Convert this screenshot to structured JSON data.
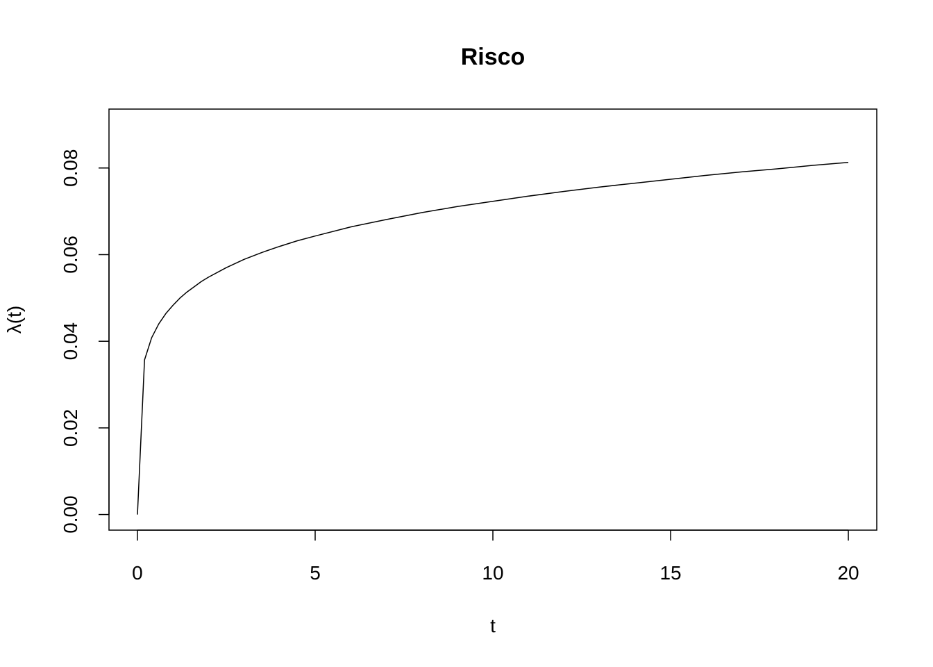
{
  "chart_data": {
    "type": "line",
    "title": "Risco",
    "xlabel": "t",
    "ylabel": "λ(t)",
    "xlim": [
      -0.8,
      20.8
    ],
    "ylim": [
      -0.0036,
      0.0936
    ],
    "xticks": [
      0,
      5,
      10,
      15,
      20
    ],
    "xtick_labels": [
      "0",
      "5",
      "10",
      "15",
      "20"
    ],
    "yticks": [
      0,
      0.02,
      0.04,
      0.06,
      0.08
    ],
    "ytick_labels": [
      "0.00",
      "0.02",
      "0.04",
      "0.06",
      "0.08"
    ],
    "grid": false,
    "legend": "none",
    "line_color": "#000000",
    "series": [
      {
        "x": [
          0,
          0.2,
          0.4,
          0.6,
          0.8,
          1,
          1.2,
          1.4,
          1.6,
          1.8,
          2,
          2.5,
          3,
          3.5,
          4,
          4.5,
          5,
          6,
          7,
          8,
          9,
          10,
          11,
          12,
          13,
          14,
          15,
          16,
          17,
          18,
          19,
          20
        ],
        "y": [
          0,
          0.0357,
          0.0408,
          0.044,
          0.0464,
          0.0483,
          0.05,
          0.0514,
          0.0526,
          0.0538,
          0.0548,
          0.057,
          0.0589,
          0.0605,
          0.0619,
          0.0632,
          0.0643,
          0.0664,
          0.0681,
          0.0697,
          0.0711,
          0.0723,
          0.0735,
          0.0746,
          0.0756,
          0.0765,
          0.0774,
          0.0783,
          0.0791,
          0.0798,
          0.0806,
          0.0813
        ]
      }
    ]
  }
}
